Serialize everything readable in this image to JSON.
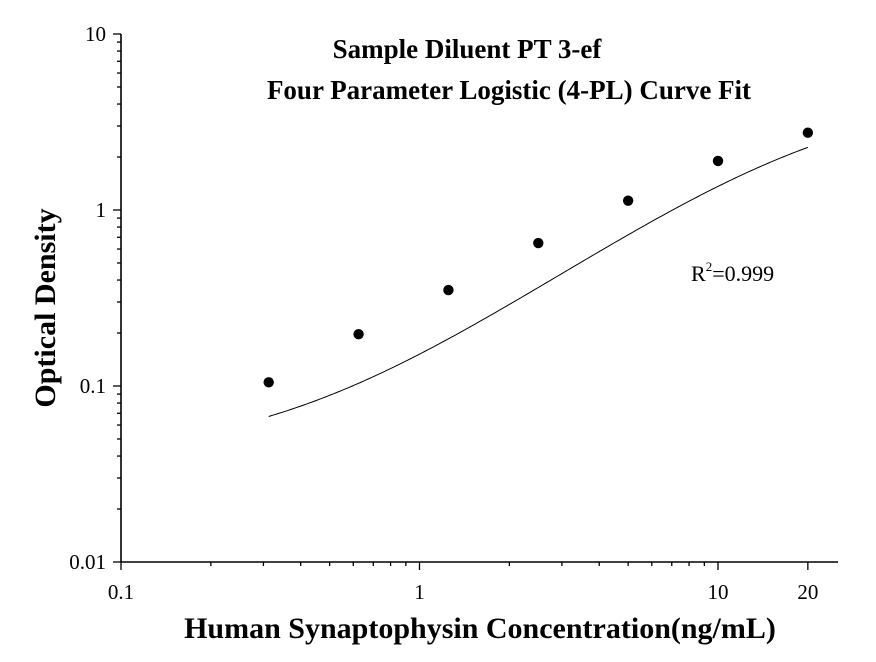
{
  "chart_data": {
    "type": "scatter",
    "title_line1": "Sample Diluent PT 3-ef",
    "title_line2": "Four Parameter Logistic (4-PL) Curve Fit",
    "xlabel": "Human Synaptophysin Concentration(ng/mL)",
    "ylabel": "Optical Density",
    "x_scale": "log",
    "y_scale": "log",
    "xlim": [
      0.1,
      20
    ],
    "ylim": [
      0.01,
      10
    ],
    "x_ticks": [
      {
        "value": 0.1,
        "label": "0.1"
      },
      {
        "value": 1,
        "label": "1"
      },
      {
        "value": 10,
        "label": "10"
      },
      {
        "value": 20,
        "label": "20"
      }
    ],
    "y_ticks": [
      {
        "value": 0.01,
        "label": "0.01"
      },
      {
        "value": 0.1,
        "label": "0.1"
      },
      {
        "value": 1,
        "label": "1"
      },
      {
        "value": 10,
        "label": "10"
      }
    ],
    "grid": false,
    "points": {
      "x": [
        0.3125,
        0.625,
        1.25,
        2.5,
        5,
        10,
        20
      ],
      "y": [
        0.105,
        0.197,
        0.351,
        0.649,
        1.13,
        1.9,
        2.75
      ]
    },
    "fit": {
      "model": "4PL",
      "a": 0.0386,
      "b": 1.2,
      "c": 22,
      "d": 4.77
    },
    "annotation": {
      "r_label": "R",
      "r_sup": "2",
      "r_value": "=0.999"
    },
    "colors": {
      "axis": "#000000",
      "points": "#000000",
      "curve": "#000000"
    }
  }
}
